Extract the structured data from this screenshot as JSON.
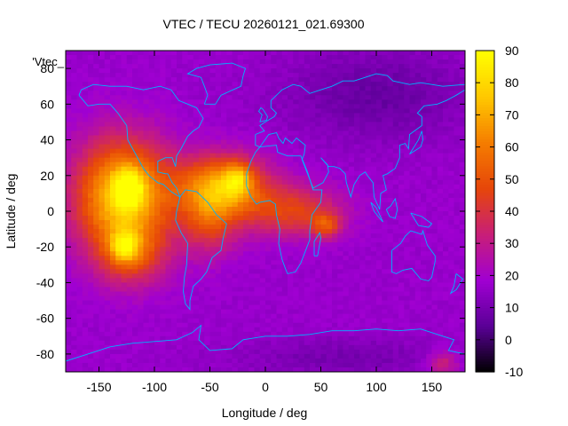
{
  "chart_data": {
    "type": "heatmap",
    "title": "VTEC / TECU 20260121_021.69300",
    "xlabel": "Longitude / deg",
    "ylabel": "Latitude / deg",
    "legend_label": "'Vtec_",
    "xlim": [
      -180,
      180
    ],
    "ylim": [
      -90,
      90
    ],
    "xticks": [
      -150,
      -100,
      -50,
      0,
      50,
      100,
      150
    ],
    "yticks": [
      -80,
      -60,
      -40,
      -20,
      0,
      20,
      40,
      60,
      80
    ],
    "colorbar": {
      "min": -10,
      "max": 90,
      "ticks": [
        -10,
        0,
        10,
        20,
        30,
        40,
        50,
        60,
        70,
        80,
        90
      ],
      "palette_stops": [
        "#000000",
        "#5a0096",
        "#a000d2",
        "#c81e78",
        "#e6460a",
        "#f57d00",
        "#ffc800",
        "#ffff00"
      ]
    },
    "grid": false,
    "background_value": 17,
    "features": [
      {
        "name": "pacific-equatorial-crest",
        "lon": -128,
        "lat": 8,
        "peak": 62,
        "sigma_lon": 30,
        "sigma_lat": 22
      },
      {
        "name": "pacific-hotspot-north",
        "lon": -123,
        "lat": 13,
        "peak": 35,
        "sigma_lon": 9,
        "sigma_lat": 7
      },
      {
        "name": "pacific-hotspot-south",
        "lon": -127,
        "lat": -20,
        "peak": 30,
        "sigma_lon": 9,
        "sigma_lat": 6
      },
      {
        "name": "pacific-southern-lobe",
        "lon": -120,
        "lat": -25,
        "peak": 22,
        "sigma_lon": 22,
        "sigma_lat": 12
      },
      {
        "name": "atlantic-crest",
        "lon": -38,
        "lat": 14,
        "peak": 50,
        "sigma_lon": 28,
        "sigma_lat": 12
      },
      {
        "name": "atlantic-hotspot",
        "lon": -25,
        "lat": 18,
        "peak": 25,
        "sigma_lon": 8,
        "sigma_lat": 6
      },
      {
        "name": "brazil-extension",
        "lon": -50,
        "lat": -5,
        "peak": 25,
        "sigma_lon": 18,
        "sigma_lat": 14
      },
      {
        "name": "africa-tail",
        "lon": 25,
        "lat": 0,
        "peak": 28,
        "sigma_lon": 30,
        "sigma_lat": 10
      },
      {
        "name": "indian-ocean-spot",
        "lon": 55,
        "lat": -8,
        "peak": 25,
        "sigma_lon": 9,
        "sigma_lat": 5
      },
      {
        "name": "siberian-low",
        "lon": 100,
        "lat": 65,
        "peak": -10,
        "sigma_lon": 60,
        "sigma_lat": 18
      },
      {
        "name": "antarctic-low",
        "lon": 70,
        "lat": -82,
        "peak": -7,
        "sigma_lon": 70,
        "sigma_lat": 8
      },
      {
        "name": "ross-sea-spot",
        "lon": 160,
        "lat": -85,
        "peak": 18,
        "sigma_lon": 10,
        "sigma_lat": 5
      }
    ],
    "coastlines": [
      {
        "name": "north-america",
        "points": [
          [
            -168,
            65
          ],
          [
            -160,
            59
          ],
          [
            -150,
            60
          ],
          [
            -140,
            60
          ],
          [
            -133,
            55
          ],
          [
            -125,
            48
          ],
          [
            -124,
            40
          ],
          [
            -117,
            32
          ],
          [
            -110,
            24
          ],
          [
            -105,
            20
          ],
          [
            -97,
            16
          ],
          [
            -92,
            15
          ],
          [
            -85,
            11
          ],
          [
            -80,
            9
          ],
          [
            -77,
            8
          ],
          [
            -80,
            13
          ],
          [
            -84,
            16
          ],
          [
            -88,
            21
          ],
          [
            -90,
            21
          ],
          [
            -97,
            22
          ],
          [
            -97,
            28
          ],
          [
            -90,
            30
          ],
          [
            -84,
            30
          ],
          [
            -81,
            25
          ],
          [
            -80,
            31
          ],
          [
            -76,
            35
          ],
          [
            -70,
            42
          ],
          [
            -65,
            45
          ],
          [
            -60,
            47
          ],
          [
            -56,
            52
          ],
          [
            -62,
            58
          ],
          [
            -70,
            60
          ],
          [
            -78,
            62
          ],
          [
            -85,
            68
          ],
          [
            -95,
            70
          ],
          [
            -110,
            68
          ],
          [
            -125,
            70
          ],
          [
            -140,
            70
          ],
          [
            -155,
            71
          ],
          [
            -166,
            68
          ],
          [
            -168,
            65
          ]
        ]
      },
      {
        "name": "greenland",
        "points": [
          [
            -55,
            60
          ],
          [
            -45,
            60
          ],
          [
            -40,
            65
          ],
          [
            -22,
            70
          ],
          [
            -20,
            76
          ],
          [
            -18,
            80
          ],
          [
            -30,
            83
          ],
          [
            -50,
            82
          ],
          [
            -62,
            80
          ],
          [
            -70,
            77
          ],
          [
            -58,
            75
          ],
          [
            -55,
            70
          ],
          [
            -52,
            65
          ],
          [
            -55,
            60
          ]
        ]
      },
      {
        "name": "south-america",
        "points": [
          [
            -77,
            8
          ],
          [
            -72,
            12
          ],
          [
            -62,
            11
          ],
          [
            -52,
            5
          ],
          [
            -44,
            -2
          ],
          [
            -35,
            -7
          ],
          [
            -38,
            -15
          ],
          [
            -40,
            -22
          ],
          [
            -48,
            -26
          ],
          [
            -53,
            -34
          ],
          [
            -58,
            -38
          ],
          [
            -65,
            -42
          ],
          [
            -68,
            -50
          ],
          [
            -68,
            -55
          ],
          [
            -72,
            -52
          ],
          [
            -74,
            -45
          ],
          [
            -73,
            -37
          ],
          [
            -71,
            -30
          ],
          [
            -70,
            -18
          ],
          [
            -76,
            -12
          ],
          [
            -81,
            -5
          ],
          [
            -80,
            0
          ],
          [
            -77,
            8
          ]
        ]
      },
      {
        "name": "africa",
        "points": [
          [
            -17,
            21
          ],
          [
            -13,
            28
          ],
          [
            -9,
            33
          ],
          [
            -5,
            36
          ],
          [
            10,
            37
          ],
          [
            11,
            33
          ],
          [
            20,
            31
          ],
          [
            32,
            31
          ],
          [
            34,
            28
          ],
          [
            38,
            22
          ],
          [
            43,
            12
          ],
          [
            51,
            12
          ],
          [
            50,
            5
          ],
          [
            42,
            -2
          ],
          [
            40,
            -11
          ],
          [
            40,
            -16
          ],
          [
            35,
            -24
          ],
          [
            32,
            -29
          ],
          [
            27,
            -34
          ],
          [
            20,
            -35
          ],
          [
            18,
            -32
          ],
          [
            15,
            -27
          ],
          [
            12,
            -18
          ],
          [
            13,
            -10
          ],
          [
            10,
            -2
          ],
          [
            9,
            4
          ],
          [
            4,
            6
          ],
          [
            -5,
            5
          ],
          [
            -8,
            4
          ],
          [
            -13,
            8
          ],
          [
            -17,
            14
          ],
          [
            -17,
            21
          ]
        ]
      },
      {
        "name": "eurasia",
        "points": [
          [
            -9,
            43
          ],
          [
            -9,
            37
          ],
          [
            -5,
            36
          ],
          [
            3,
            43
          ],
          [
            10,
            44
          ],
          [
            12,
            41
          ],
          [
            16,
            38
          ],
          [
            18,
            41
          ],
          [
            24,
            38
          ],
          [
            28,
            41
          ],
          [
            36,
            37
          ],
          [
            35,
            32
          ],
          [
            33,
            29
          ],
          [
            43,
            13
          ],
          [
            52,
            16
          ],
          [
            57,
            22
          ],
          [
            56,
            26
          ],
          [
            50,
            30
          ],
          [
            57,
            25
          ],
          [
            62,
            25
          ],
          [
            67,
            24
          ],
          [
            72,
            21
          ],
          [
            73,
            16
          ],
          [
            77,
            8
          ],
          [
            80,
            15
          ],
          [
            85,
            20
          ],
          [
            90,
            22
          ],
          [
            92,
            20
          ],
          [
            97,
            16
          ],
          [
            98,
            8
          ],
          [
            103,
            1
          ],
          [
            104,
            10
          ],
          [
            109,
            12
          ],
          [
            106,
            20
          ],
          [
            110,
            21
          ],
          [
            117,
            24
          ],
          [
            121,
            30
          ],
          [
            121,
            37
          ],
          [
            126,
            38
          ],
          [
            129,
            35
          ],
          [
            130,
            43
          ],
          [
            141,
            48
          ],
          [
            141,
            53
          ],
          [
            137,
            55
          ],
          [
            143,
            59
          ],
          [
            155,
            60
          ],
          [
            163,
            62
          ],
          [
            172,
            65
          ],
          [
            180,
            68
          ],
          [
            180,
            71
          ],
          [
            160,
            70
          ],
          [
            150,
            71
          ],
          [
            140,
            72
          ],
          [
            130,
            71
          ],
          [
            115,
            73
          ],
          [
            110,
            76
          ],
          [
            100,
            77
          ],
          [
            90,
            75
          ],
          [
            80,
            73
          ],
          [
            70,
            73
          ],
          [
            60,
            70
          ],
          [
            50,
            68
          ],
          [
            40,
            66
          ],
          [
            32,
            70
          ],
          [
            25,
            71
          ],
          [
            15,
            68
          ],
          [
            5,
            62
          ],
          [
            5,
            58
          ],
          [
            10,
            55
          ],
          [
            8,
            53
          ],
          [
            0,
            50
          ],
          [
            -5,
            48
          ],
          [
            -1,
            45
          ],
          [
            -9,
            43
          ]
        ]
      },
      {
        "name": "britain",
        "points": [
          [
            -5,
            50
          ],
          [
            1,
            51
          ],
          [
            2,
            53
          ],
          [
            -2,
            57
          ],
          [
            -4,
            58
          ],
          [
            -6,
            56
          ],
          [
            -3,
            54
          ],
          [
            -5,
            50
          ]
        ]
      },
      {
        "name": "madagascar",
        "points": [
          [
            44,
            -25
          ],
          [
            47,
            -25
          ],
          [
            50,
            -15
          ],
          [
            49,
            -12
          ],
          [
            44,
            -17
          ],
          [
            44,
            -25
          ]
        ]
      },
      {
        "name": "japan",
        "points": [
          [
            130,
            32
          ],
          [
            135,
            34
          ],
          [
            140,
            36
          ],
          [
            142,
            40
          ],
          [
            141,
            45
          ],
          [
            138,
            40
          ],
          [
            132,
            34
          ],
          [
            130,
            32
          ]
        ]
      },
      {
        "name": "indonesia-sumatra",
        "points": [
          [
            95,
            5
          ],
          [
            100,
            2
          ],
          [
            106,
            -6
          ],
          [
            103,
            -4
          ],
          [
            98,
            0
          ],
          [
            95,
            5
          ]
        ]
      },
      {
        "name": "indonesia-borneo",
        "points": [
          [
            109,
            1
          ],
          [
            112,
            -3
          ],
          [
            117,
            -4
          ],
          [
            119,
            1
          ],
          [
            117,
            7
          ],
          [
            113,
            3
          ],
          [
            109,
            1
          ]
        ]
      },
      {
        "name": "new-guinea",
        "points": [
          [
            131,
            -1
          ],
          [
            141,
            -3
          ],
          [
            150,
            -7
          ],
          [
            147,
            -9
          ],
          [
            138,
            -8
          ],
          [
            131,
            -1
          ]
        ]
      },
      {
        "name": "australia",
        "points": [
          [
            114,
            -22
          ],
          [
            114,
            -34
          ],
          [
            118,
            -35
          ],
          [
            124,
            -33
          ],
          [
            132,
            -32
          ],
          [
            136,
            -35
          ],
          [
            140,
            -38
          ],
          [
            147,
            -39
          ],
          [
            150,
            -37
          ],
          [
            153,
            -28
          ],
          [
            153,
            -25
          ],
          [
            146,
            -19
          ],
          [
            142,
            -11
          ],
          [
            141,
            -13
          ],
          [
            136,
            -12
          ],
          [
            131,
            -11
          ],
          [
            126,
            -14
          ],
          [
            122,
            -18
          ],
          [
            114,
            -22
          ]
        ]
      },
      {
        "name": "new-zealand",
        "points": [
          [
            172,
            -35
          ],
          [
            178,
            -38
          ],
          [
            175,
            -41
          ],
          [
            172,
            -44
          ],
          [
            167,
            -46
          ],
          [
            170,
            -42
          ],
          [
            172,
            -35
          ]
        ]
      },
      {
        "name": "antarctica",
        "points": [
          [
            -180,
            -84
          ],
          [
            -160,
            -80
          ],
          [
            -140,
            -76
          ],
          [
            -120,
            -74
          ],
          [
            -100,
            -73
          ],
          [
            -80,
            -72
          ],
          [
            -66,
            -68
          ],
          [
            -58,
            -64
          ],
          [
            -60,
            -72
          ],
          [
            -50,
            -78
          ],
          [
            -30,
            -77
          ],
          [
            -20,
            -72
          ],
          [
            0,
            -70
          ],
          [
            20,
            -70
          ],
          [
            40,
            -69
          ],
          [
            60,
            -67
          ],
          [
            80,
            -67
          ],
          [
            100,
            -66
          ],
          [
            120,
            -67
          ],
          [
            140,
            -66
          ],
          [
            160,
            -70
          ],
          [
            170,
            -72
          ],
          [
            165,
            -78
          ],
          [
            180,
            -80
          ]
        ]
      }
    ]
  }
}
